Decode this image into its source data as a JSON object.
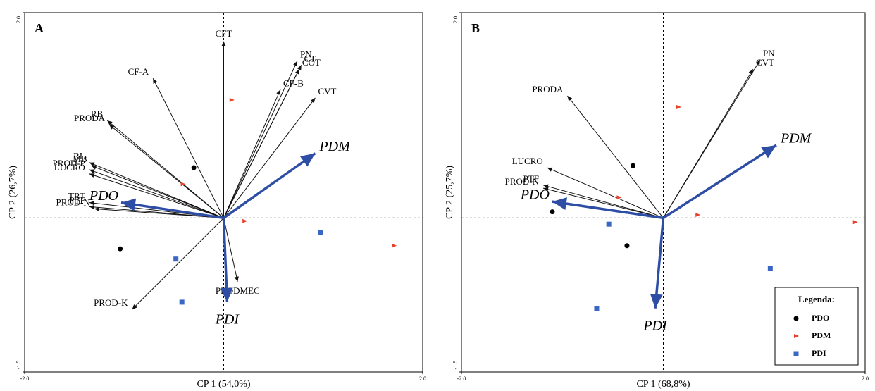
{
  "chart_data": [
    {
      "type": "biplot",
      "label": "A",
      "xlabel": "CP 1 (54,0%)",
      "ylabel": "CP 2 (26,7%)",
      "xlim": [
        -2,
        2
      ],
      "ylim": [
        -1.5,
        2
      ],
      "xticks": [
        {
          "value": -2,
          "label": "-2.0"
        },
        {
          "value": 2,
          "label": "2.0"
        }
      ],
      "yticks": [
        -1.5,
        {
          "value": 2,
          "label": "2.0"
        }
      ],
      "loading_color": "#111111",
      "arrow_color": "#2e4ea6",
      "legend": false,
      "loadings": [
        {
          "label": "CFT",
          "x": 0.0,
          "y": 1.72
        },
        {
          "label": "CF-A",
          "x": -0.71,
          "y": 1.36
        },
        {
          "label": "PN",
          "x": 0.74,
          "y": 1.53
        },
        {
          "label": "CT",
          "x": 0.78,
          "y": 1.49
        },
        {
          "label": "COT",
          "x": 0.76,
          "y": 1.45
        },
        {
          "label": "CF-B",
          "x": 0.57,
          "y": 1.25
        },
        {
          "label": "CVT",
          "x": 0.92,
          "y": 1.17
        },
        {
          "label": "RB",
          "x": -1.17,
          "y": 0.95
        },
        {
          "label": "PRODA",
          "x": -1.15,
          "y": 0.91
        },
        {
          "label": "RL",
          "x": -1.35,
          "y": 0.54
        },
        {
          "label": "MB",
          "x": -1.33,
          "y": 0.51
        },
        {
          "label": "PROD-P",
          "x": -1.35,
          "y": 0.47
        },
        {
          "label": "LUCRO",
          "x": -1.35,
          "y": 0.43
        },
        {
          "label": "TRT",
          "x": -1.35,
          "y": 0.15
        },
        {
          "label": "PTF",
          "x": -1.35,
          "y": 0.11
        },
        {
          "label": "PROD-N",
          "x": -1.3,
          "y": 0.09
        },
        {
          "label": "PRODMEC",
          "x": 0.14,
          "y": -0.62
        },
        {
          "label": "PROD-K",
          "x": -0.92,
          "y": -0.89
        }
      ],
      "series": [
        {
          "name": "PDO",
          "color": "#000000",
          "marker": "circle",
          "arrow": [
            -1.03,
            0.15
          ],
          "x": [
            -0.3,
            -1.04
          ],
          "y": [
            0.49,
            -0.3
          ]
        },
        {
          "name": "PDM",
          "color": "#e8412c",
          "marker": "triangle",
          "arrow": [
            0.92,
            0.63
          ],
          "x": [
            0.08,
            -0.41,
            0.21,
            1.71
          ],
          "y": [
            1.15,
            0.33,
            -0.03,
            -0.27
          ]
        },
        {
          "name": "PDI",
          "color": "#3a66c4",
          "marker": "square",
          "arrow": [
            0.035,
            -0.82
          ],
          "x": [
            0.97,
            -0.48,
            -0.42
          ],
          "y": [
            -0.14,
            -0.4,
            -0.82
          ]
        }
      ]
    },
    {
      "type": "biplot",
      "label": "B",
      "xlabel": "CP 1 (68,8%)",
      "ylabel": "CP 2 (25,7%)",
      "xlim": [
        -2,
        2
      ],
      "ylim": [
        -1.5,
        2
      ],
      "xticks": [
        {
          "value": -2,
          "label": "-2.0"
        },
        {
          "value": 2,
          "label": "2.0"
        }
      ],
      "yticks": [
        -1.5,
        {
          "value": 2,
          "label": "2.0"
        }
      ],
      "loading_color": "#111111",
      "arrow_color": "#2e4ea6",
      "legend": true,
      "legend_title": "Legenda:",
      "legend_position": "lower right",
      "loadings": [
        {
          "label": "PN",
          "x": 0.96,
          "y": 1.54
        },
        {
          "label": "CVT",
          "x": 0.89,
          "y": 1.45
        },
        {
          "label": "PRODA",
          "x": -0.95,
          "y": 1.19
        },
        {
          "label": "LUCRO",
          "x": -1.15,
          "y": 0.49
        },
        {
          "label": "PTF",
          "x": -1.19,
          "y": 0.32
        },
        {
          "label": "PROD-N",
          "x": -1.19,
          "y": 0.29
        }
      ],
      "series": [
        {
          "name": "PDO",
          "color": "#000000",
          "marker": "circle",
          "arrow": [
            -1.1,
            0.16
          ],
          "x": [
            -0.3,
            -1.1,
            -0.36
          ],
          "y": [
            0.51,
            0.06,
            -0.27
          ]
        },
        {
          "name": "PDM",
          "color": "#e8412c",
          "marker": "triangle",
          "arrow": [
            1.12,
            0.71
          ],
          "x": [
            0.15,
            -0.44,
            0.34,
            1.9
          ],
          "y": [
            1.08,
            0.2,
            0.03,
            -0.04
          ]
        },
        {
          "name": "PDI",
          "color": "#3a66c4",
          "marker": "square",
          "arrow": [
            -0.08,
            -0.88
          ],
          "x": [
            -0.54,
            1.06,
            -0.66
          ],
          "y": [
            -0.06,
            -0.49,
            -0.88
          ]
        }
      ]
    }
  ]
}
